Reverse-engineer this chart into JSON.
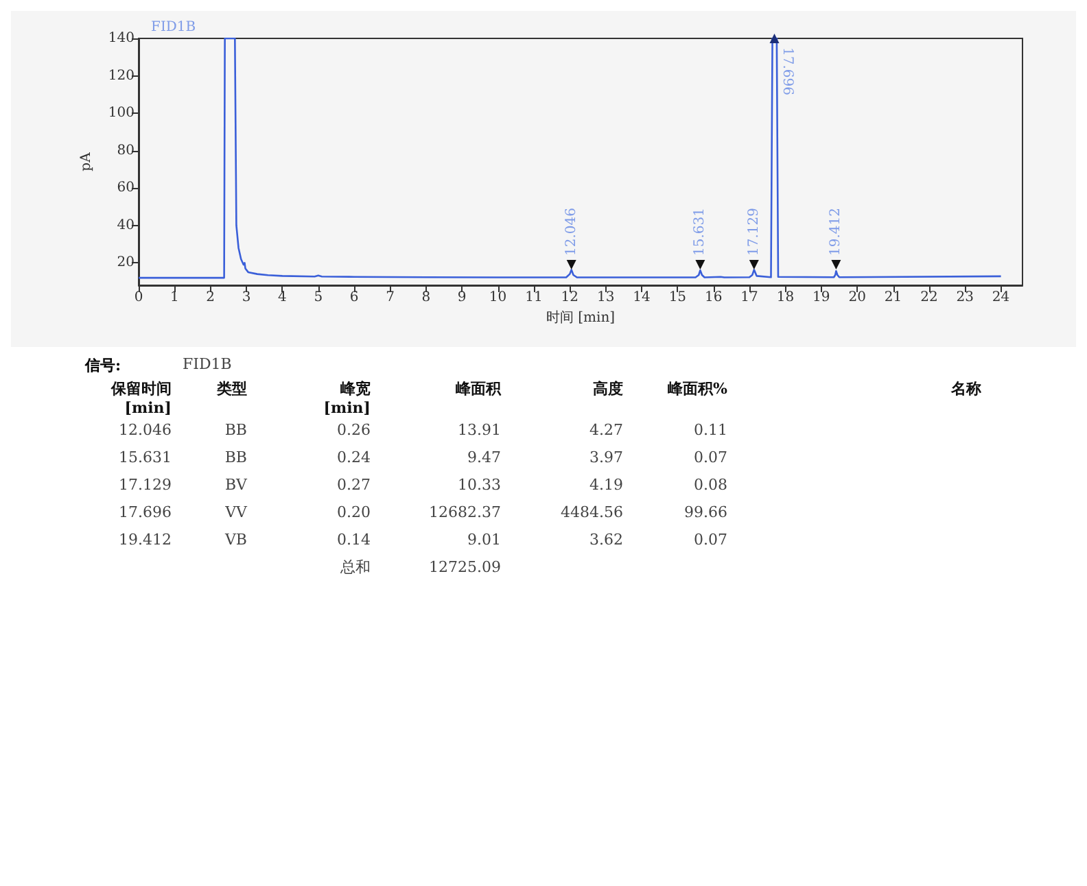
{
  "chart_data": [
    {
      "type": "line",
      "title": "FID1B",
      "xlabel": "时间 [min]",
      "ylabel": "pA",
      "xlim": [
        0,
        24.6
      ],
      "ylim": [
        8,
        140
      ],
      "xticks": [
        0,
        1,
        2,
        3,
        4,
        5,
        6,
        7,
        8,
        9,
        10,
        11,
        12,
        13,
        14,
        15,
        16,
        17,
        18,
        19,
        20,
        21,
        22,
        23,
        24
      ],
      "yticks": [
        20,
        40,
        60,
        80,
        100,
        120,
        140
      ],
      "grid": false,
      "series": [
        {
          "color": "#3a5fd9",
          "x": [
            0,
            2.38,
            2.4,
            2.68,
            2.72,
            2.78,
            2.85,
            2.92,
            2.95,
            2.97,
            3.05,
            3.3,
            3.6,
            4,
            4.9,
            5.0,
            5.1,
            6,
            8,
            10,
            11.9,
            12.0,
            12.046,
            12.1,
            12.2,
            15.5,
            15.59,
            15.631,
            15.68,
            15.75,
            16.2,
            16.3,
            17.0,
            17.08,
            17.129,
            17.2,
            17.6,
            17.64,
            17.76,
            17.8,
            19.35,
            19.39,
            19.412,
            19.45,
            19.5,
            24
          ],
          "values": [
            12,
            12,
            140,
            140,
            40,
            28,
            22,
            19,
            20,
            17,
            15,
            14,
            13.4,
            13,
            12.7,
            13.2,
            12.7,
            12.5,
            12.3,
            12.2,
            12.2,
            14,
            16.3,
            13.5,
            12.2,
            12.2,
            13.5,
            16,
            13.5,
            12.2,
            12.5,
            12.2,
            12.3,
            13.5,
            16.3,
            13,
            12.3,
            140,
            140,
            12.5,
            12.3,
            13.5,
            15.6,
            13.5,
            12.3,
            12.8
          ]
        }
      ],
      "annotations": [
        {
          "text": "12.046",
          "x": 12.046,
          "y": 19
        },
        {
          "text": "15.631",
          "x": 15.631,
          "y": 19
        },
        {
          "text": "17.129",
          "x": 17.129,
          "y": 19
        },
        {
          "text": "17.696",
          "x": 17.696,
          "y": 140
        },
        {
          "text": "19.412",
          "x": 19.412,
          "y": 19
        }
      ]
    },
    {
      "type": "other",
      "title": "信号:",
      "subtitle": "FID1B",
      "categories": [
        "保留时间 [min]",
        "类型",
        "峰宽 [min]",
        "峰面积",
        "高度",
        "峰面积%",
        "名称"
      ],
      "cell_labels": [
        [
          "12.046",
          "BB",
          "0.26",
          "13.91",
          "4.27",
          "0.11",
          null
        ],
        [
          "15.631",
          "BB",
          "0.24",
          "9.47",
          "3.97",
          "0.07",
          null
        ],
        [
          "17.129",
          "BV",
          "0.27",
          "10.33",
          "4.19",
          "0.08",
          null
        ],
        [
          "17.696",
          "VV",
          "0.20",
          "12682.37",
          "4484.56",
          "99.66",
          null
        ],
        [
          "19.412",
          "VB",
          "0.14",
          "9.01",
          "3.62",
          "0.07",
          null
        ],
        [
          null,
          null,
          "总和",
          "12725.09",
          null,
          null,
          null
        ]
      ]
    }
  ]
}
